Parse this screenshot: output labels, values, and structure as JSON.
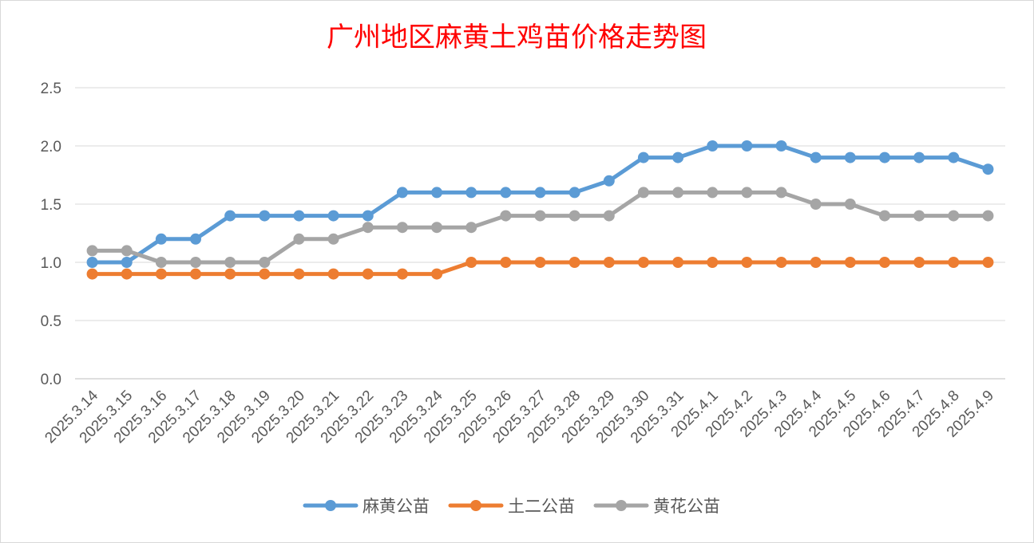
{
  "chart_data": {
    "type": "line",
    "title": "广州地区麻黄土鸡苗价格走势图",
    "xlabel": "",
    "ylabel": "",
    "ylim": [
      0,
      2.5
    ],
    "yticks": [
      "0.0",
      "0.5",
      "1.0",
      "1.5",
      "2.0",
      "2.5"
    ],
    "grid": true,
    "legend_position": "bottom",
    "categories": [
      "2025.3.14",
      "2025.3.15",
      "2025.3.16",
      "2025.3.17",
      "2025.3.18",
      "2025.3.19",
      "2025.3.20",
      "2025.3.21",
      "2025.3.22",
      "2025.3.23",
      "2025.3.24",
      "2025.3.25",
      "2025.3.26",
      "2025.3.27",
      "2025.3.28",
      "2025.3.29",
      "2025.3.30",
      "2025.3.31",
      "2025.4.1",
      "2025.4.2",
      "2025.4.3",
      "2025.4.4",
      "2025.4.5",
      "2025.4.6",
      "2025.4.7",
      "2025.4.8",
      "2025.4.9"
    ],
    "series": [
      {
        "name": "麻黄公苗",
        "color": "#5b9bd5",
        "values": [
          1.0,
          1.0,
          1.2,
          1.2,
          1.4,
          1.4,
          1.4,
          1.4,
          1.4,
          1.6,
          1.6,
          1.6,
          1.6,
          1.6,
          1.6,
          1.7,
          1.9,
          1.9,
          2.0,
          2.0,
          2.0,
          1.9,
          1.9,
          1.9,
          1.9,
          1.9,
          1.8
        ]
      },
      {
        "name": "土二公苗",
        "color": "#ed7d31",
        "values": [
          0.9,
          0.9,
          0.9,
          0.9,
          0.9,
          0.9,
          0.9,
          0.9,
          0.9,
          0.9,
          0.9,
          1.0,
          1.0,
          1.0,
          1.0,
          1.0,
          1.0,
          1.0,
          1.0,
          1.0,
          1.0,
          1.0,
          1.0,
          1.0,
          1.0,
          1.0,
          1.0
        ]
      },
      {
        "name": "黄花公苗",
        "color": "#a5a5a5",
        "values": [
          1.1,
          1.1,
          1.0,
          1.0,
          1.0,
          1.0,
          1.2,
          1.2,
          1.3,
          1.3,
          1.3,
          1.3,
          1.4,
          1.4,
          1.4,
          1.4,
          1.6,
          1.6,
          1.6,
          1.6,
          1.6,
          1.5,
          1.5,
          1.4,
          1.4,
          1.4,
          1.4
        ]
      }
    ]
  }
}
